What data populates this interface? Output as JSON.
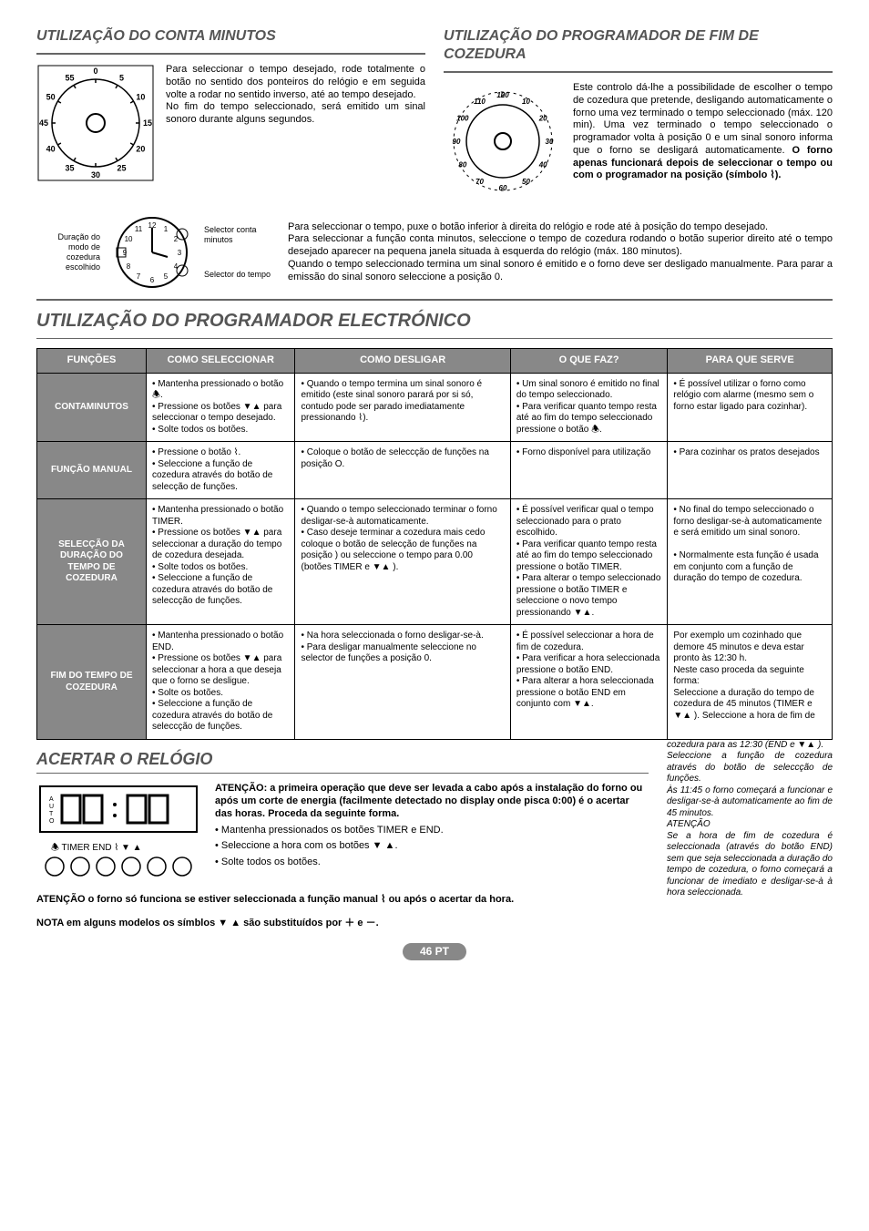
{
  "colors": {
    "accent_grey": "#888888",
    "title_grey": "#555555",
    "border": "#000000",
    "bg": "#ffffff"
  },
  "top_left": {
    "title": "UTILIZAÇÃO DO CONTA MINUTOS",
    "text": "Para seleccionar o tempo desejado, rode totalmente o botão no sentido dos ponteiros do relógio e em seguida volte a rodar no sentido inverso, até ao tempo desejado.\nNo fim do tempo seleccionado, será emitido um sinal sonoro durante alguns segundos."
  },
  "top_right": {
    "title": "UTILIZAÇÃO DO PROGRAMADOR DE FIM DE COZEDURA",
    "text": "Este controlo dá-lhe a possibilidade de escolher o tempo de cozedura que pretende, desligando automaticamente o forno uma vez terminado o tempo seleccionado (máx. 120 min). Uma vez terminado o tempo seleccionado o programador volta à posição 0 e um sinal sonoro informa que o forno se desligará automaticamente. ",
    "bold_tail": "O forno apenas funcionará depois de seleccionar o tempo ou com o programador na posição (símbolo ⌇)."
  },
  "clock_block": {
    "left_label": "Duração do modo de cozedura escolhido",
    "right_label_top": "Selector conta minutos",
    "right_label_bottom": "Selector do tempo",
    "paragraph": "Para seleccionar o tempo, puxe o botão inferior à direita do relógio e rode até à posição do tempo desejado.\nPara seleccionar a função conta minutos, seleccione o tempo de cozedura rodando o botão superior direito até o tempo desejado aparecer na pequena janela situada à esquerda do relógio (máx. 180 minutos).\nQuando o tempo seleccionado termina um sinal sonoro é emitido e o forno deve ser desligado manualmente. Para parar a emissão do sinal sonoro seleccione a posição 0."
  },
  "main_section_title": "UTILIZAÇÃO DO PROGRAMADOR ELECTRÓNICO",
  "table": {
    "headers": [
      "FUNÇÕES",
      "COMO SELECCIONAR",
      "COMO DESLIGAR",
      "O QUE FAZ?",
      "PARA QUE SERVE"
    ],
    "rows": [
      {
        "func": "CONTAMINUTOS",
        "select": "• Mantenha pressionado o botão 🕭.\n• Pressione os botões ▼▲ para seleccionar o tempo desejado.\n• Solte todos os botões.",
        "off": "• Quando o tempo termina um sinal sonoro é emitido (este sinal sonoro parará por si só, contudo pode ser parado imediatamente pressionando ⌇).",
        "what": "• Um sinal sonoro é emitido no final do tempo seleccionado.\n• Para verificar quanto tempo resta até ao fim do tempo seleccionado pressione o botão 🕭.",
        "purpose": "• É possível utilizar o forno como relógio com alarme (mesmo sem o forno estar ligado para cozinhar)."
      },
      {
        "func": "FUNÇÃO MANUAL",
        "select": "• Pressione o botão ⌇.\n• Seleccione a função de cozedura através do botão de selecção de funções.",
        "off": "• Coloque o botão de seleccção de funções na posição O.",
        "what": "• Forno disponível para utilização",
        "purpose": "• Para cozinhar os pratos desejados"
      },
      {
        "func": "SELECÇÃO DA DURAÇÃO DO TEMPO DE COZEDURA",
        "select": "• Mantenha pressionado o botão TIMER.\n• Pressione os botões ▼▲ para seleccionar a duração do tempo de cozedura desejada.\n• Solte todos os botões.\n• Seleccione a função de cozedura através do botão de seleccção de funções.",
        "off": "• Quando o tempo seleccionado terminar o forno desligar-se-à automaticamente.\n• Caso deseje terminar a cozedura mais cedo coloque o botão de selecção de funções na posição ) ou seleccione o tempo para 0.00 (botões TIMER e ▼▲ ).",
        "what": "• É possível verificar qual o tempo seleccionado para o prato escolhido.\n• Para verificar quanto tempo resta até ao fim do tempo seleccionado pressione o botão TIMER.\n• Para alterar o tempo seleccionado pressione o botão TIMER e seleccione o novo tempo pressionando ▼▲.",
        "purpose": "• No final do tempo seleccionado o forno desligar-se-à automaticamente e será emitido um sinal sonoro.\n\n• Normalmente esta função é usada em conjunto com a função de duração do tempo de cozedura."
      },
      {
        "func": "FIM DO TEMPO DE COZEDURA",
        "select": "• Mantenha pressionado o botão END.\n• Pressione os botões ▼▲ para seleccionar a hora a que deseja que o forno se desligue.\n• Solte os botões.\n• Seleccione a função de cozedura através do botão de seleccção de funções.",
        "off": "• Na hora seleccionada o forno desligar-se-à.\n• Para desligar manualmente seleccione no selector de funções a posição 0.",
        "what": "• É possível seleccionar a hora de fim de cozedura.\n• Para verificar a hora seleccionada pressione o botão END.\n• Para alterar a hora seleccionada pressione o botão END em conjunto com ▼▲.",
        "purpose": "Por exemplo um cozinhado que demore 45 minutos e deva estar pronto às 12:30 h.\nNeste caso proceda da seguinte forma:\nSeleccione a duração do tempo de cozedura de 45 minutos (TIMER e ▼▲ ). Seleccione a hora de fim de"
      }
    ]
  },
  "third_title": "ACERTAR O RELÓGIO",
  "clock_set": {
    "lead_bold": "ATENÇÃO: a primeira operação que deve ser levada a cabo após a instalação do forno ou após um corte de energia (facilmente detectado no display onde pisca 0:00) é o acertar das horas. Proceda da seguinte forma.",
    "bullets": [
      "• Mantenha pressionados os botões TIMER e END.",
      "• Seleccione a hora com os botões ▼ ▲.",
      "• Solte todos os botões."
    ],
    "warn1": "ATENÇÃO o forno só funciona se estiver seleccionada a função manual ⌇ ou após o acertar da hora.",
    "note": "NOTA em alguns modelos os símblos ▼ ▲ são substituídos por ＋ e －."
  },
  "right_note": "cozedura para as 12:30 (END e ▼▲ ).\nSeleccione a função de cozedura através do botão de seleccção de funções.\nÀs 11:45 o forno começará a funcionar e desligar-se-à automaticamente ao fim de 45 minutos.\nATENÇÃO\nSe a hora de fim de cozedura é seleccionada (através do botão END) sem que seja seleccionada a duração do tempo de cozedura, o forno começará a funcionar de imediato e desligar-se-à à hora seleccionada.",
  "page_num": "46 PT",
  "dial_left": {
    "ticks": [
      "0",
      "5",
      "10",
      "15",
      "20",
      "25",
      "30",
      "35",
      "40",
      "45",
      "50",
      "55"
    ]
  },
  "dial_right": {
    "ticks": [
      "0",
      "10",
      "20",
      "30",
      "40",
      "50",
      "60",
      "70",
      "80",
      "90",
      "100",
      "110",
      "120"
    ]
  }
}
